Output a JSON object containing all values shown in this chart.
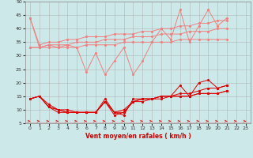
{
  "xlabel": "Vent moyen/en rafales ( km/h )",
  "xlim": [
    -0.5,
    23.5
  ],
  "ylim": [
    5,
    50
  ],
  "yticks": [
    5,
    10,
    15,
    20,
    25,
    30,
    35,
    40,
    45,
    50
  ],
  "xticks": [
    0,
    1,
    2,
    3,
    4,
    5,
    6,
    7,
    8,
    9,
    10,
    11,
    12,
    13,
    14,
    15,
    16,
    17,
    18,
    19,
    20,
    21,
    22,
    23
  ],
  "background_color": "#cce8e8",
  "grid_color": "#aaaaaa",
  "light_red": "#f08080",
  "dark_red": "#dd0000",
  "series_light": [
    [
      44,
      33,
      34,
      33,
      34,
      33,
      24,
      31,
      23,
      28,
      33,
      23,
      28,
      35,
      40,
      36,
      47,
      35,
      41,
      47,
      41,
      44
    ],
    [
      44,
      34,
      35,
      35,
      36,
      36,
      37,
      37,
      37,
      38,
      38,
      38,
      39,
      39,
      40,
      40,
      41,
      41,
      42,
      42,
      43,
      43
    ],
    [
      33,
      33,
      34,
      34,
      34,
      35,
      35,
      35,
      36,
      36,
      36,
      37,
      37,
      37,
      38,
      38,
      38,
      39,
      39,
      39,
      40,
      40
    ],
    [
      33,
      33,
      33,
      33,
      33,
      33,
      34,
      34,
      34,
      34,
      35,
      35,
      35,
      35,
      35,
      35,
      36,
      36,
      36,
      36,
      36,
      36
    ]
  ],
  "series_dark": [
    [
      14,
      15,
      11,
      10,
      10,
      9,
      9,
      9,
      14,
      9,
      8,
      14,
      14,
      14,
      15,
      15,
      19,
      15,
      20,
      21,
      18,
      19
    ],
    [
      14,
      15,
      11,
      10,
      9,
      9,
      9,
      9,
      13,
      9,
      9,
      13,
      13,
      14,
      14,
      15,
      15,
      15,
      16,
      16,
      16,
      17
    ],
    [
      14,
      15,
      12,
      10,
      9,
      9,
      9,
      9,
      13,
      9,
      10,
      13,
      14,
      14,
      15,
      15,
      16,
      16,
      17,
      18,
      18,
      19
    ],
    [
      14,
      15,
      11,
      9,
      9,
      9,
      9,
      9,
      13,
      8,
      9,
      13,
      14,
      14,
      15,
      15,
      15,
      15,
      16,
      16,
      16,
      17
    ]
  ]
}
